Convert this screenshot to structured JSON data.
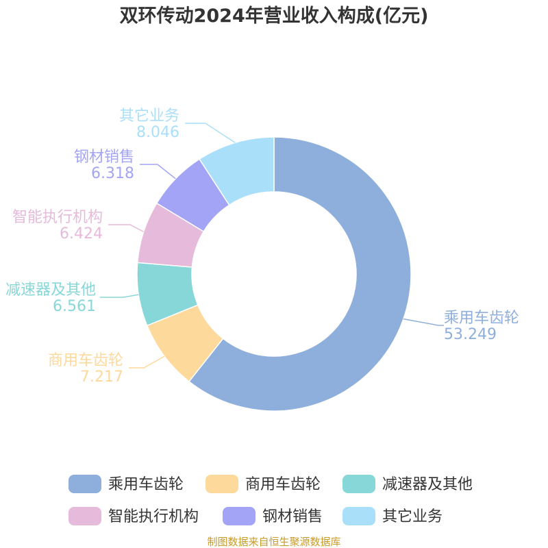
{
  "chart_data": {
    "type": "pie",
    "variant": "donut",
    "title": "双环传动2024年营业收入构成(亿元)",
    "slices": [
      {
        "name": "乘用车齿轮",
        "value": 53.249,
        "label": "53.249",
        "color": "#8eaedb"
      },
      {
        "name": "商用车齿轮",
        "value": 7.217,
        "label": "7.217",
        "color": "#fdd99b"
      },
      {
        "name": "减速器及其他",
        "value": 6.561,
        "label": "6.561",
        "color": "#87d7d9"
      },
      {
        "name": "智能执行机构",
        "value": 6.424,
        "label": "6.424",
        "color": "#e6bada"
      },
      {
        "name": "钢材销售",
        "value": 6.318,
        "label": "6.318",
        "color": "#a3a4f5"
      },
      {
        "name": "其它业务",
        "value": 8.046,
        "label": "8.046",
        "color": "#aadff9"
      }
    ],
    "legend": {
      "position": "bottom"
    }
  },
  "source": {
    "text": "制图数据来自恒生聚源数据库",
    "color": "#c79b2a"
  }
}
